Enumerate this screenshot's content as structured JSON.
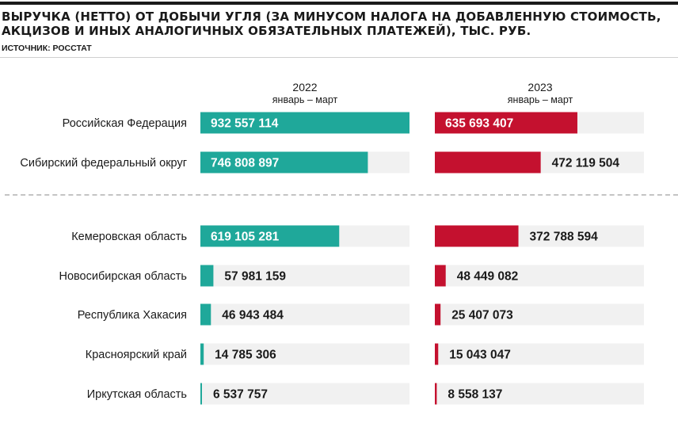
{
  "title": "Выручка (нетто) от добычи угля (за минусом налога на добавленную стоимость, акцизов и иных аналогичных обязательных платежей), тыс. руб.",
  "source": "Источник: Росстат",
  "colors": {
    "teal": "#1fa89a",
    "crimson": "#c4112f",
    "track": "#f1f1f1",
    "text": "#1a1a1a"
  },
  "chart_data": {
    "type": "bar",
    "orientation": "horizontal",
    "title": "Выручка (нетто) от добычи угля (за минусом налога на добавленную стоимость, акцизов и иных аналогичных обязательных платежей), тыс. руб.",
    "categories": [
      "Российская Федерация",
      "Сибирский федеральный округ",
      "Кемеровская область",
      "Новосибирская область",
      "Республика Хакасия",
      "Красноярский край",
      "Иркутская область"
    ],
    "series": [
      {
        "name": "2022",
        "period": "январь – март",
        "color": "#1fa89a",
        "values": [
          932557114,
          746808897,
          619105281,
          57981159,
          46943484,
          14785306,
          6537757
        ],
        "labels": [
          "932 557 114",
          "746 808 897",
          "619 105 281",
          "57 981 159",
          "46 943 484",
          "14 785 306",
          "6 537 757"
        ]
      },
      {
        "name": "2023",
        "period": "январь – март",
        "color": "#c4112f",
        "values": [
          635693407,
          472119504,
          372788594,
          48449082,
          25407073,
          15043047,
          8558137
        ],
        "labels": [
          "635 693 407",
          "472 119 504",
          "372 788 594",
          "48 449 082",
          "25 407 073",
          "15 043 047",
          "8 558 137"
        ]
      }
    ],
    "xlim": [
      0,
      932557114
    ],
    "grid": false,
    "legend": "column headers"
  }
}
